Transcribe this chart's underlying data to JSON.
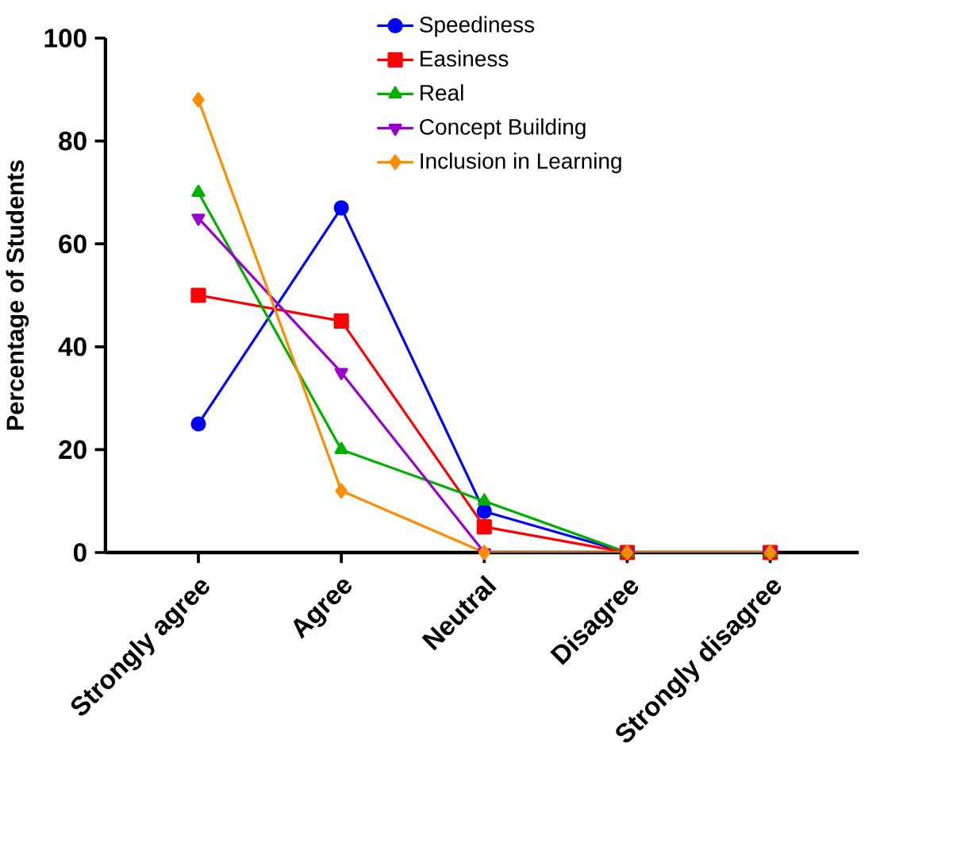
{
  "chart_data": {
    "type": "line",
    "ylabel": "Percentage of Students",
    "categories": [
      "Strongly agree",
      "Agree",
      "Neutral",
      "Disagree",
      "Strongly disagree"
    ],
    "series": [
      {
        "name": "Speediness",
        "color": "#0000ff",
        "marker": "circle",
        "values": [
          25,
          67,
          8,
          0,
          0
        ]
      },
      {
        "name": "Easiness",
        "color": "#ff0000",
        "marker": "square",
        "values": [
          50,
          45,
          5,
          0,
          0
        ]
      },
      {
        "name": "Real",
        "color": "#00b000",
        "marker": "triangle",
        "values": [
          70,
          20,
          10,
          0,
          0
        ]
      },
      {
        "name": "Concept Building",
        "color": "#9900cc",
        "marker": "triangle-down",
        "values": [
          65,
          35,
          0,
          0,
          0
        ]
      },
      {
        "name": "Inclusion in Learning",
        "color": "#ff8c00",
        "marker": "diamond",
        "values": [
          88,
          12,
          0,
          0,
          0
        ]
      }
    ],
    "ylim": [
      0,
      100
    ],
    "yticks": [
      0,
      20,
      40,
      60,
      80,
      100
    ],
    "grid": false,
    "legend": "top right",
    "line_style": "solid"
  }
}
